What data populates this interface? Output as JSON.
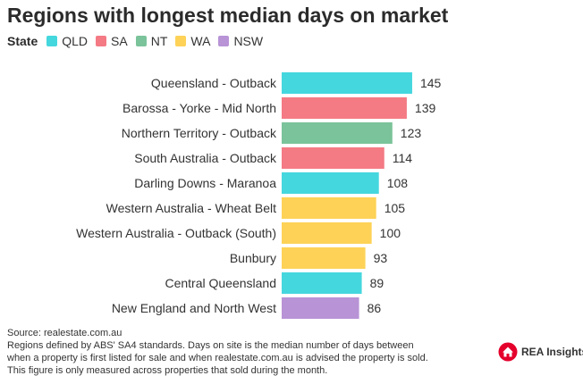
{
  "title": "Regions with longest median days on market",
  "legend": {
    "heading": "State",
    "items": [
      {
        "label": "QLD",
        "color": "#45d7de"
      },
      {
        "label": "SA",
        "color": "#f47a84"
      },
      {
        "label": "NT",
        "color": "#7bc39a"
      },
      {
        "label": "WA",
        "color": "#fdd257"
      },
      {
        "label": "NSW",
        "color": "#b893d6"
      }
    ]
  },
  "chart_data": {
    "type": "bar",
    "orientation": "horizontal",
    "categories": [
      "Queensland - Outback",
      "Barossa - Yorke - Mid North",
      "Northern Territory - Outback",
      "South Australia - Outback",
      "Darling Downs - Maranoa",
      "Western Australia - Wheat Belt",
      "Western Australia - Outback (South)",
      "Bunbury",
      "Central Queensland",
      "New England and North West"
    ],
    "values": [
      145,
      139,
      123,
      114,
      108,
      105,
      100,
      93,
      89,
      86
    ],
    "states": [
      "QLD",
      "SA",
      "NT",
      "SA",
      "QLD",
      "WA",
      "WA",
      "WA",
      "QLD",
      "NSW"
    ],
    "data_labels": true,
    "xlim": [
      0,
      155
    ],
    "grid": false,
    "legend_position": "top-left"
  },
  "footer": {
    "source": "Source: realestate.com.au",
    "note_lines": [
      "Regions defined by ABS' SA4 standards. Days on site is the median number of days between",
      "when a property is first listed for sale and when realestate.com.au is advised the property is sold.",
      "This figure is only measured across properties that sold during the month."
    ]
  },
  "brand": {
    "name": "REA Insights",
    "icon": "rea-house-logo-icon",
    "color": "#e4002b"
  }
}
